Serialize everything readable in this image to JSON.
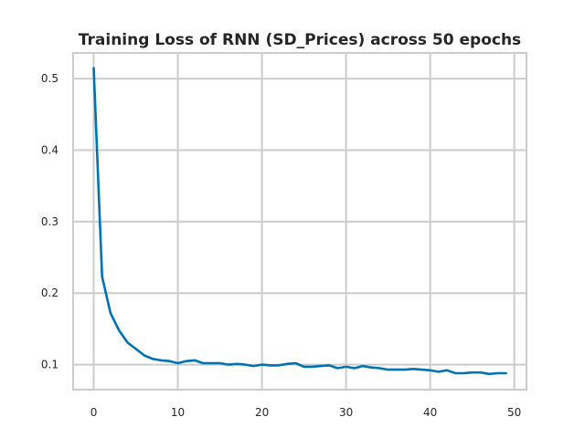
{
  "chart_data": {
    "type": "line",
    "title": "Training Loss of RNN (SD_Prices) across 50 epochs",
    "xlabel": "",
    "ylabel": "",
    "xlim": [
      -2.45,
      51.45
    ],
    "ylim": [
      0.065,
      0.536
    ],
    "x_ticks": [
      0,
      10,
      20,
      30,
      40,
      50
    ],
    "y_ticks": [
      0.1,
      0.2,
      0.3,
      0.4,
      0.5
    ],
    "grid": true,
    "series": [
      {
        "color": "#0173b2",
        "x": [
          0,
          1,
          2,
          3,
          4,
          5,
          6,
          7,
          8,
          9,
          10,
          11,
          12,
          13,
          14,
          15,
          16,
          17,
          18,
          19,
          20,
          21,
          22,
          23,
          24,
          25,
          26,
          27,
          28,
          29,
          30,
          31,
          32,
          33,
          34,
          35,
          36,
          37,
          38,
          39,
          40,
          41,
          42,
          43,
          44,
          45,
          46,
          47,
          48,
          49
        ],
        "values": [
          0.515,
          0.223,
          0.172,
          0.148,
          0.131,
          0.122,
          0.113,
          0.108,
          0.106,
          0.105,
          0.102,
          0.105,
          0.106,
          0.102,
          0.102,
          0.102,
          0.1,
          0.101,
          0.1,
          0.098,
          0.1,
          0.099,
          0.099,
          0.101,
          0.102,
          0.097,
          0.097,
          0.098,
          0.099,
          0.095,
          0.097,
          0.095,
          0.098,
          0.096,
          0.095,
          0.093,
          0.093,
          0.093,
          0.094,
          0.093,
          0.092,
          0.09,
          0.092,
          0.088,
          0.088,
          0.089,
          0.089,
          0.087,
          0.088,
          0.088
        ]
      }
    ]
  }
}
